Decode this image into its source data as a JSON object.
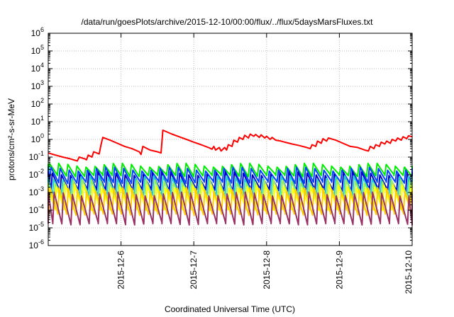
{
  "chart_data": {
    "type": "line",
    "title": "/data/run/goesPlots/archive/2015-12-10/00:00/flux/../flux/5daysMarsFluxes.txt",
    "xlabel": "Coordinated Universal Time (UTC)",
    "ylabel": "protons/cm²-s-sr-MeV",
    "y_scale": "log",
    "ylim": [
      1e-06,
      1000000.0
    ],
    "xlim": [
      "2015-12-05 00:00",
      "2015-12-10 00:00"
    ],
    "x_start_ms": 1449273600000,
    "x_end_ms": 1449705600000,
    "grid": true,
    "legend": "none",
    "y_ticks": [
      {
        "base": "10",
        "exp": "-6",
        "value": 1e-06
      },
      {
        "base": "10",
        "exp": "-5",
        "value": 1e-05
      },
      {
        "base": "10",
        "exp": "-4",
        "value": 0.0001
      },
      {
        "base": "10",
        "exp": "-3",
        "value": 0.001
      },
      {
        "base": "10",
        "exp": "-2",
        "value": 0.01
      },
      {
        "base": "10",
        "exp": "-1",
        "value": 0.1
      },
      {
        "base": "10",
        "exp": "0",
        "value": 1
      },
      {
        "base": "10",
        "exp": "1",
        "value": 10
      },
      {
        "base": "10",
        "exp": "2",
        "value": 100
      },
      {
        "base": "10",
        "exp": "3",
        "value": 1000
      },
      {
        "base": "10",
        "exp": "4",
        "value": 10000
      },
      {
        "base": "10",
        "exp": "5",
        "value": 100000
      },
      {
        "base": "10",
        "exp": "6",
        "value": 1000000
      }
    ],
    "x_ticks": [
      {
        "label": "2015-12-6",
        "time": "2015-12-06 00:00"
      },
      {
        "label": "2015-12-7",
        "time": "2015-12-07 00:00"
      },
      {
        "label": "2015-12-8",
        "time": "2015-12-08 00:00"
      },
      {
        "label": "2015-12-9",
        "time": "2015-12-09 00:00"
      },
      {
        "label": "2015-12-10",
        "time": "2015-12-10 00:00"
      }
    ],
    "series": [
      {
        "color": "#ff0000",
        "points": [
          [
            "2015-12-05 00:00",
            0.17
          ],
          [
            "2015-12-05 02:24",
            0.13
          ],
          [
            "2015-12-05 04:48",
            0.1
          ],
          [
            "2015-12-05 07:12",
            0.08
          ],
          [
            "2015-12-05 09:36",
            0.06
          ],
          [
            "2015-12-05 10:12",
            0.1
          ],
          [
            "2015-12-05 12:00",
            0.08
          ],
          [
            "2015-12-05 12:36",
            0.07
          ],
          [
            "2015-12-05 13:12",
            0.13
          ],
          [
            "2015-12-05 14:24",
            0.1
          ],
          [
            "2015-12-05 15:00",
            0.2
          ],
          [
            "2015-12-05 16:48",
            0.15
          ],
          [
            "2015-12-05 17:24",
            0.5
          ],
          [
            "2015-12-05 18:00",
            1.3
          ],
          [
            "2015-12-05 20:24",
            0.9
          ],
          [
            "2015-12-05 22:48",
            0.6
          ],
          [
            "2015-12-06 01:12",
            0.4
          ],
          [
            "2015-12-06 03:36",
            0.3
          ],
          [
            "2015-12-06 06:00",
            0.2
          ],
          [
            "2015-12-06 06:36",
            0.14
          ],
          [
            "2015-12-06 07:12",
            0.4
          ],
          [
            "2015-12-06 09:36",
            0.25
          ],
          [
            "2015-12-06 12:00",
            0.2
          ],
          [
            "2015-12-06 13:12",
            0.17
          ],
          [
            "2015-12-06 13:48",
            3.3
          ],
          [
            "2015-12-06 16:48",
            2.0
          ],
          [
            "2015-12-06 19:12",
            1.4
          ],
          [
            "2015-12-06 21:36",
            1.0
          ],
          [
            "2015-12-07 00:00",
            0.7
          ],
          [
            "2015-12-07 02:24",
            0.5
          ],
          [
            "2015-12-07 04:48",
            0.35
          ],
          [
            "2015-12-07 06:00",
            0.28
          ],
          [
            "2015-12-07 06:36",
            0.4
          ],
          [
            "2015-12-07 07:12",
            0.25
          ],
          [
            "2015-12-07 08:24",
            0.35
          ],
          [
            "2015-12-07 09:00",
            0.22
          ],
          [
            "2015-12-07 10:12",
            0.35
          ],
          [
            "2015-12-07 10:48",
            0.25
          ],
          [
            "2015-12-07 11:24",
            0.5
          ],
          [
            "2015-12-07 12:36",
            0.4
          ],
          [
            "2015-12-07 13:12",
            0.9
          ],
          [
            "2015-12-07 14:24",
            0.7
          ],
          [
            "2015-12-07 15:00",
            1.3
          ],
          [
            "2015-12-07 16:12",
            1.0
          ],
          [
            "2015-12-07 16:48",
            1.7
          ],
          [
            "2015-12-07 18:00",
            1.2
          ],
          [
            "2015-12-07 18:36",
            2.0
          ],
          [
            "2015-12-07 19:48",
            1.5
          ],
          [
            "2015-12-07 20:24",
            1.9
          ],
          [
            "2015-12-07 21:36",
            1.3
          ],
          [
            "2015-12-07 22:12",
            1.8
          ],
          [
            "2015-12-07 23:24",
            1.2
          ],
          [
            "2015-12-08 00:00",
            1.5
          ],
          [
            "2015-12-08 01:12",
            1.0
          ],
          [
            "2015-12-08 01:48",
            1.3
          ],
          [
            "2015-12-08 03:00",
            0.9
          ],
          [
            "2015-12-08 04:48",
            0.8
          ],
          [
            "2015-12-08 06:00",
            0.7
          ],
          [
            "2015-12-08 08:24",
            0.55
          ],
          [
            "2015-12-08 10:48",
            0.45
          ],
          [
            "2015-12-08 13:12",
            0.35
          ],
          [
            "2015-12-08 14:24",
            0.3
          ],
          [
            "2015-12-08 15:00",
            0.5
          ],
          [
            "2015-12-08 16:12",
            0.4
          ],
          [
            "2015-12-08 16:48",
            0.8
          ],
          [
            "2015-12-08 18:00",
            0.6
          ],
          [
            "2015-12-08 18:36",
            1.1
          ],
          [
            "2015-12-08 19:48",
            0.8
          ],
          [
            "2015-12-08 20:24",
            1.2
          ],
          [
            "2015-12-08 22:48",
            0.9
          ],
          [
            "2015-12-09 01:12",
            0.6
          ],
          [
            "2015-12-09 03:36",
            0.4
          ],
          [
            "2015-12-09 06:00",
            0.35
          ],
          [
            "2015-12-09 08:24",
            0.25
          ],
          [
            "2015-12-09 09:36",
            0.22
          ],
          [
            "2015-12-09 10:12",
            0.4
          ],
          [
            "2015-12-09 11:24",
            0.3
          ],
          [
            "2015-12-09 12:00",
            0.5
          ],
          [
            "2015-12-09 13:12",
            0.4
          ],
          [
            "2015-12-09 13:48",
            0.7
          ],
          [
            "2015-12-09 15:00",
            0.55
          ],
          [
            "2015-12-09 15:36",
            0.8
          ],
          [
            "2015-12-09 16:48",
            0.6
          ],
          [
            "2015-12-09 17:24",
            1.0
          ],
          [
            "2015-12-09 18:36",
            0.8
          ],
          [
            "2015-12-09 19:12",
            1.2
          ],
          [
            "2015-12-09 20:24",
            0.9
          ],
          [
            "2015-12-09 21:00",
            1.4
          ],
          [
            "2015-12-09 22:12",
            1.1
          ],
          [
            "2015-12-09 22:48",
            1.6
          ],
          [
            "2015-12-10 00:00",
            1.4
          ]
        ]
      },
      {
        "color": "#00ee00",
        "base": 0.018,
        "ratio": 2.0,
        "phase": 0.0
      },
      {
        "color": "#0044ff",
        "base": 0.009,
        "ratio": 2.4,
        "phase": 0.15
      },
      {
        "color": "#0000cc",
        "base": 0.004,
        "ratio": 3.0,
        "phase": 0.3
      },
      {
        "color": "#22cccc",
        "base": 0.0022,
        "ratio": 3.2,
        "phase": 0.45
      },
      {
        "color": "#99ee55",
        "base": 0.0012,
        "ratio": 3.5,
        "phase": 0.6
      },
      {
        "color": "#ffff00",
        "base": 0.0005,
        "ratio": 4.5,
        "phase": 0.75
      },
      {
        "color": "#ffcc00",
        "base": 0.0003,
        "ratio": 5.0,
        "phase": 0.05
      },
      {
        "color": "#993366",
        "base": 0.00012,
        "ratio": 7.0,
        "phase": 0.5
      }
    ],
    "sawtooth_period_hours": 3.0
  }
}
